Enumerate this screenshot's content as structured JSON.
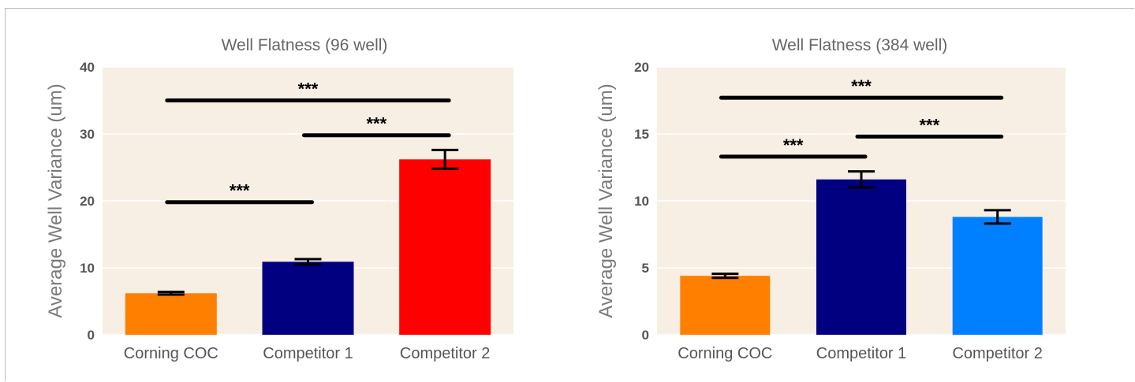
{
  "chart_data": [
    {
      "type": "bar",
      "title": "Well Flatness (96 well)",
      "xlabel": "",
      "ylabel": "Average Well Variance (um)",
      "ylim": [
        0,
        40
      ],
      "yticks": [
        0,
        10,
        20,
        30,
        40
      ],
      "grid": true,
      "background": "#f7efe4",
      "categories": [
        "Corning COC",
        "Competitor 1",
        "Competitor 2"
      ],
      "values": [
        6.2,
        10.9,
        26.2
      ],
      "error": [
        0.2,
        0.4,
        1.4
      ],
      "colors": [
        "#ff7f00",
        "#000080",
        "#ff0000"
      ],
      "significance": [
        {
          "from": 0,
          "to": 1,
          "y": 19.8,
          "label": "***"
        },
        {
          "from": 1,
          "to": 2,
          "y": 29.8,
          "label": "***"
        },
        {
          "from": 0,
          "to": 2,
          "y": 35.0,
          "label": "***"
        }
      ]
    },
    {
      "type": "bar",
      "title": "Well Flatness (384 well)",
      "xlabel": "",
      "ylabel": "Average Well Variance (um)",
      "ylim": [
        0,
        20
      ],
      "yticks": [
        0,
        5,
        10,
        15,
        20
      ],
      "grid": true,
      "background": "#f7efe4",
      "categories": [
        "Corning COC",
        "Competitor 1",
        "Competitor 2"
      ],
      "values": [
        4.4,
        11.6,
        8.8
      ],
      "error": [
        0.15,
        0.6,
        0.5
      ],
      "colors": [
        "#ff7f00",
        "#000080",
        "#0080ff"
      ],
      "significance": [
        {
          "from": 0,
          "to": 1,
          "y": 13.3,
          "label": "***"
        },
        {
          "from": 1,
          "to": 2,
          "y": 14.8,
          "label": "***"
        },
        {
          "from": 0,
          "to": 2,
          "y": 17.7,
          "label": "***"
        }
      ]
    }
  ]
}
